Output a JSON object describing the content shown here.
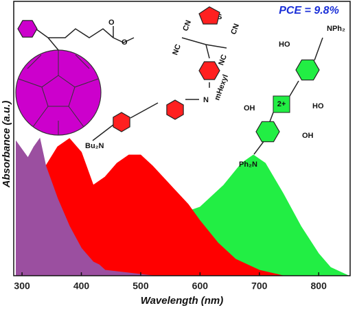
{
  "chart_data": {
    "type": "area",
    "xlabel": "Wavelength (nm)",
    "ylabel": "Absorbance (a.u.)",
    "xlim": [
      286,
      853
    ],
    "ylim": [
      0,
      1
    ],
    "xticks": [
      300,
      400,
      500,
      600,
      700,
      800
    ],
    "series": [
      {
        "color": "#22ee44",
        "x": [
          290,
          400,
          500,
          560,
          600,
          640,
          670,
          690,
          710,
          740,
          770,
          800,
          820,
          840,
          850
        ],
        "values": [
          0.05,
          0.08,
          0.15,
          0.22,
          0.25,
          0.33,
          0.41,
          0.44,
          0.41,
          0.3,
          0.18,
          0.08,
          0.03,
          0.01,
          0
        ]
      },
      {
        "color": "#ff0000",
        "x": [
          290,
          300,
          320,
          340,
          360,
          380,
          400,
          420,
          440,
          460,
          480,
          500,
          520,
          550,
          580,
          600,
          630,
          660,
          700,
          740
        ],
        "values": [
          0.3,
          0.32,
          0.35,
          0.4,
          0.47,
          0.5,
          0.45,
          0.33,
          0.36,
          0.41,
          0.44,
          0.44,
          0.4,
          0.33,
          0.26,
          0.2,
          0.12,
          0.06,
          0.02,
          0
        ]
      },
      {
        "color": "#9b4fa0",
        "x": [
          290,
          300,
          310,
          320,
          330,
          340,
          360,
          380,
          400,
          420,
          430,
          440,
          480,
          520
        ],
        "values": [
          0.49,
          0.46,
          0.43,
          0.47,
          0.5,
          0.4,
          0.28,
          0.18,
          0.1,
          0.05,
          0.04,
          0.02,
          0.01,
          0
        ]
      }
    ],
    "annotations": [
      "PCE = 9.8%",
      "Bu₂N",
      "N",
      "mHexyl",
      "NC",
      "CN",
      "NC",
      "CN",
      "S",
      "OH",
      "OH",
      "HO",
      "HO",
      "Ph₂N",
      "NPh₂",
      "2+",
      "O",
      "O"
    ]
  }
}
